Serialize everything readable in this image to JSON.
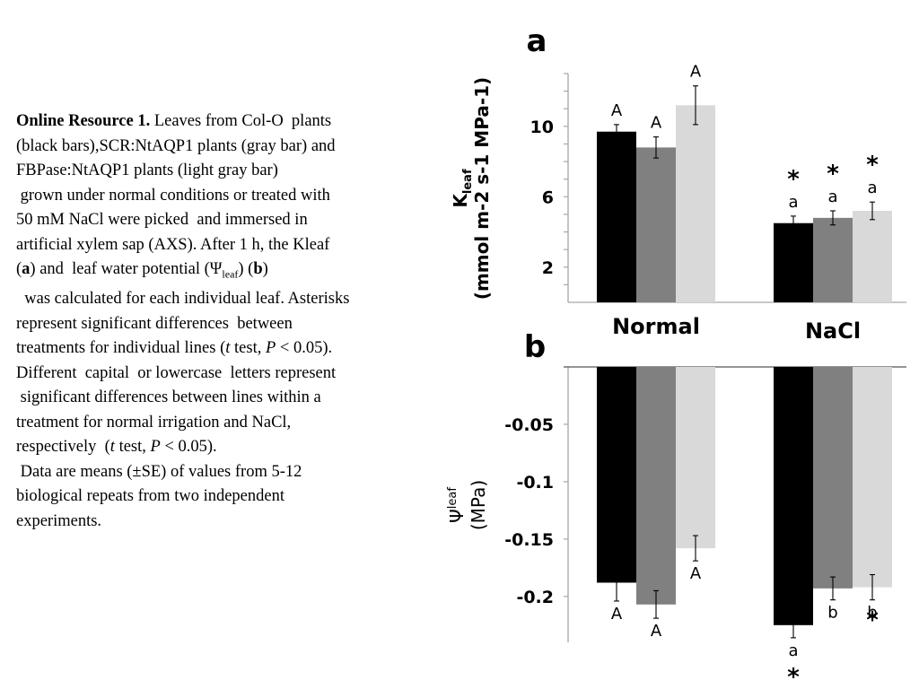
{
  "caption": {
    "title": "Online Resource 1.",
    "line1_rest": " Leaves from Col-O  plants",
    "line2": "(black bars),SCR:NtAQP1 plants (gray bar) and",
    "line3": "FBPase:NtAQP1 plants (light gray bar)",
    "line4": " grown under normal conditions or treated with",
    "line5": "50 mM NaCl were picked  and immersed in",
    "line6": "artificial xylem sap (AXS). After 1 h, the Kleaf",
    "line7_open": "(",
    "line7_a": "a",
    "line7_mid": ") and  leaf water potential (Ψ",
    "line7_sub": "leaf",
    "line7_mid2": ") (",
    "line7_b": "b",
    "line7_close": ")",
    "line8": "  was calculated for each individual leaf. Asterisks",
    "line9": "represent significant differences  between",
    "line10_pre": "treatments for individual lines (",
    "line10_t": "t",
    "line10_mid": " test, ",
    "line10_p": "P",
    "line10_post": " < 0.05).",
    "line11": "Different  capital  or lowercase  letters represent",
    "line12": " significant differences between lines within a",
    "line13": "treatment for normal irrigation and NaCl,",
    "line14_pre": "respectively  (",
    "line14_t": "t",
    "line14_mid": " test, ",
    "line14_p": "P",
    "line14_post": " < 0.05).",
    "line15": " Data are means (±SE) of values from 5-12",
    "line16": "biological repeats from two independent",
    "line17": "experiments."
  },
  "colors": {
    "col0": "#000000",
    "scr": "#808080",
    "fbpase": "#d9d9d9",
    "axis": "#a6a6a6"
  },
  "chart_data": [
    {
      "panel": "a",
      "type": "bar",
      "categories": [
        "Normal",
        "NaCl"
      ],
      "ylabel_main": "K",
      "ylabel_sub": "leaf",
      "ylabel_units": "(mmol m-2 s-1 MPa-1)",
      "ylim": [
        0,
        13
      ],
      "yticks": [
        2,
        6,
        10
      ],
      "grid": false,
      "series": [
        {
          "values": [
            9.7,
            4.5
          ],
          "errors": [
            0.4,
            0.4
          ],
          "labels": [
            "A",
            "a"
          ],
          "stars": [
            false,
            true
          ],
          "color": "#000000"
        },
        {
          "values": [
            8.8,
            4.8
          ],
          "errors": [
            0.6,
            0.4
          ],
          "labels": [
            "A",
            "a"
          ],
          "stars": [
            false,
            true
          ],
          "color": "#808080"
        },
        {
          "values": [
            11.2,
            5.2
          ],
          "errors": [
            1.1,
            0.5
          ],
          "labels": [
            "A",
            "a"
          ],
          "stars": [
            false,
            true
          ],
          "color": "#d9d9d9"
        }
      ]
    },
    {
      "panel": "b",
      "type": "bar",
      "categories": [
        "Normal",
        "NaCl"
      ],
      "ylabel_main": "Ψ",
      "ylabel_sub": "leaf",
      "ylabel_units": "(MPa)",
      "ylim": [
        -0.24,
        0
      ],
      "yticks": [
        -0.05,
        -0.1,
        -0.15,
        -0.2
      ],
      "ytick_labels": [
        "-0.05",
        "-0.1",
        "-0.15",
        "-0.2"
      ],
      "grid": false,
      "series": [
        {
          "values": [
            -0.188,
            -0.225
          ],
          "errors": [
            0.016,
            0.011
          ],
          "labels": [
            "A",
            "a"
          ],
          "stars": [
            false,
            true
          ],
          "color": "#000000"
        },
        {
          "values": [
            -0.207,
            -0.193
          ],
          "errors": [
            0.012,
            0.01
          ],
          "labels": [
            "A",
            "b"
          ],
          "stars": [
            false,
            false
          ],
          "color": "#808080"
        },
        {
          "values": [
            -0.158,
            -0.192
          ],
          "errors": [
            0.011,
            0.011
          ],
          "labels": [
            "A",
            "b"
          ],
          "stars": [
            false,
            true
          ],
          "color": "#d9d9d9"
        }
      ]
    }
  ]
}
